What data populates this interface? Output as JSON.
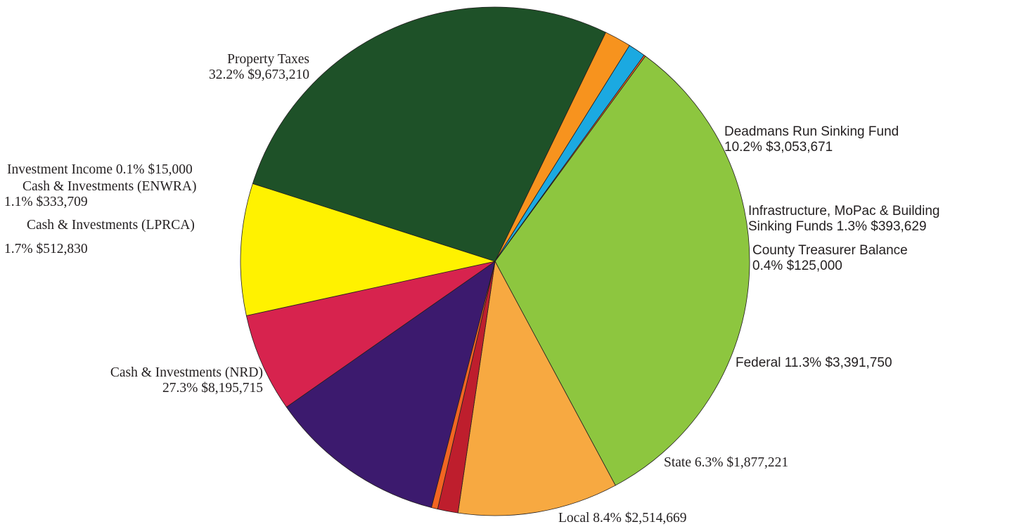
{
  "chart_data": {
    "type": "pie",
    "slices": [
      {
        "label": "Property Taxes",
        "percent": 32.2,
        "value": "$9,673,210",
        "color": "#8dc63f"
      },
      {
        "label": "Deadmans Run Sinking Fund",
        "percent": 10.2,
        "value": "$3,053,671",
        "color": "#f7a941"
      },
      {
        "label": "Infrastructure, MoPac & Building Sinking Funds",
        "percent": 1.3,
        "value": "$393,629",
        "color": "#be1e2d"
      },
      {
        "label": "County Treasurer Balance",
        "percent": 0.4,
        "value": "$125,000",
        "color": "#f26522"
      },
      {
        "label": "Federal",
        "percent": 11.3,
        "value": "$3,391,750",
        "color": "#3c1a6e"
      },
      {
        "label": "State",
        "percent": 6.3,
        "value": "$1,877,221",
        "color": "#d7234e"
      },
      {
        "label": "Local",
        "percent": 8.4,
        "value": "$2,514,669",
        "color": "#fff200"
      },
      {
        "label": "Cash & Investments (NRD)",
        "percent": 27.3,
        "value": "$8,195,715",
        "color": "#1e5128"
      },
      {
        "label": "Cash & Investments (LPRCA)",
        "percent": 1.7,
        "value": "$512,830",
        "color": "#f7931e"
      },
      {
        "label": "Cash & Investments (ENWRA)",
        "percent": 1.1,
        "value": "$333,709",
        "color": "#1ba9e1"
      },
      {
        "label": "Investment Income",
        "percent": 0.1,
        "value": "$15,000",
        "color": "#f26522"
      }
    ]
  },
  "labels": {
    "property_taxes": {
      "line1": "Property Taxes",
      "line2": "32.2%  $9,673,210"
    },
    "deadmans": {
      "line1": "Deadmans Run Sinking Fund",
      "line2": "10.2%  $3,053,671"
    },
    "infrastructure": {
      "line1": "Infrastructure, MoPac & Building",
      "line2": "Sinking Funds 1.3%  $393,629"
    },
    "county": {
      "line1": "County Treasurer Balance",
      "line2": "0.4%  $125,000"
    },
    "federal": {
      "line1": "Federal 11.3%  $3,391,750"
    },
    "state": {
      "line1": "State 6.3%  $1,877,221"
    },
    "local": {
      "line1": "Local 8.4%  $2,514,669"
    },
    "nrd": {
      "line1": "Cash & Investments (NRD)",
      "line2": "27.3%  $8,195,715"
    },
    "lprca": {
      "line1": "Cash & Investments (LPRCA)",
      "line2": "1.7%  $512,830"
    },
    "enwra": {
      "line1": "Cash & Investments (ENWRA)",
      "line2": "1.1%  $333,709"
    },
    "investment_income": {
      "line1": "Investment Income 0.1%  $15,000"
    }
  }
}
